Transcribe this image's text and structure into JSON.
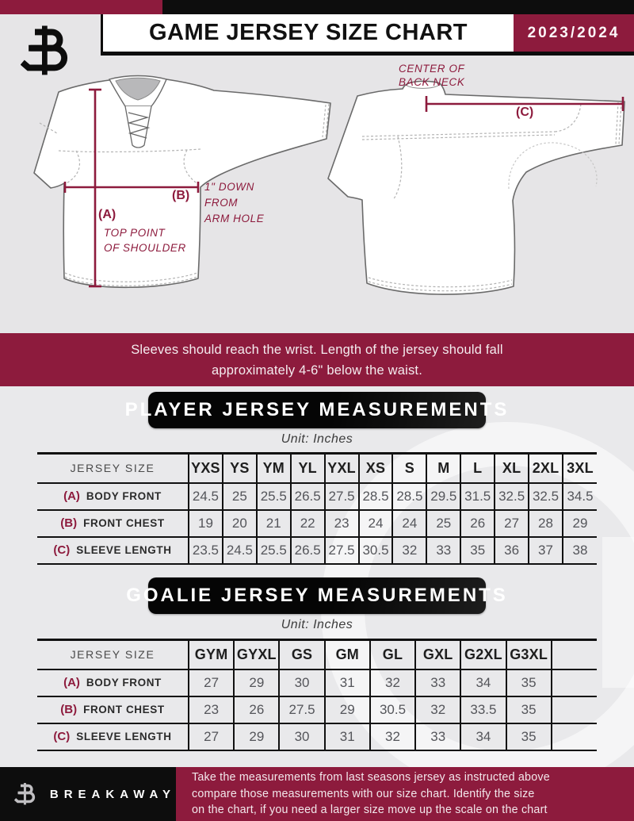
{
  "colors": {
    "maroon": "#8d1b3d",
    "black": "#0d0d0d"
  },
  "header": {
    "title": "GAME JERSEY SIZE CHART",
    "season": "2023/2024",
    "logo_icon": "breakaway-monogram"
  },
  "diagram": {
    "front": {
      "marker_a": "(A)",
      "note_a_lines": [
        "TOP POINT",
        "OF SHOULDER"
      ],
      "marker_b": "(B)",
      "note_b_lines": [
        "1\" DOWN",
        "FROM",
        "ARM HOLE"
      ]
    },
    "back": {
      "marker_c": "(C)",
      "note_c_lines": [
        "CENTER OF",
        "BACK NECK"
      ]
    }
  },
  "notice": {
    "lines": [
      "Sleeves should reach the wrist. Length of the jersey should fall",
      "approximately 4-6\" below the waist."
    ]
  },
  "player_table": {
    "title": "PLAYER JERSEY MEASUREMENTS",
    "unit_label": "Unit: Inches",
    "size_header_label": "JERSEY SIZE",
    "sizes": [
      "YXS",
      "YS",
      "YM",
      "YL",
      "YXL",
      "XS",
      "S",
      "M",
      "L",
      "XL",
      "2XL",
      "3XL"
    ],
    "rows": [
      {
        "key": "(A)",
        "label": "BODY FRONT",
        "values": [
          "24.5",
          "25",
          "25.5",
          "26.5",
          "27.5",
          "28.5",
          "28.5",
          "29.5",
          "31.5",
          "32.5",
          "32.5",
          "34.5"
        ]
      },
      {
        "key": "(B)",
        "label": "FRONT CHEST",
        "values": [
          "19",
          "20",
          "21",
          "22",
          "23",
          "24",
          "24",
          "25",
          "26",
          "27",
          "28",
          "29"
        ]
      },
      {
        "key": "(C)",
        "label": "SLEEVE LENGTH",
        "values": [
          "23.5",
          "24.5",
          "25.5",
          "26.5",
          "27.5",
          "30.5",
          "32",
          "33",
          "35",
          "36",
          "37",
          "38"
        ]
      }
    ]
  },
  "goalie_table": {
    "title": "GOALIE JERSEY MEASUREMENTS",
    "unit_label": "Unit: Inches",
    "size_header_label": "JERSEY SIZE",
    "sizes": [
      "GYM",
      "GYXL",
      "GS",
      "GM",
      "GL",
      "GXL",
      "G2XL",
      "G3XL",
      ""
    ],
    "rows": [
      {
        "key": "(A)",
        "label": "BODY FRONT",
        "values": [
          "27",
          "29",
          "30",
          "31",
          "32",
          "33",
          "34",
          "35",
          ""
        ]
      },
      {
        "key": "(B)",
        "label": "FRONT CHEST",
        "values": [
          "23",
          "26",
          "27.5",
          "29",
          "30.5",
          "32",
          "33.5",
          "35",
          ""
        ]
      },
      {
        "key": "(C)",
        "label": "SLEEVE LENGTH",
        "values": [
          "27",
          "29",
          "30",
          "31",
          "32",
          "33",
          "34",
          "35",
          ""
        ]
      }
    ]
  },
  "footer": {
    "brand": "BREAKAWAY",
    "logo_icon": "breakaway-monogram",
    "note_lines": [
      "Take the measurements from last seasons jersey as instructed above",
      "compare those measurements  with our size chart. Identify the size",
      "on the chart, if you need a larger size move up the scale on the chart"
    ]
  }
}
